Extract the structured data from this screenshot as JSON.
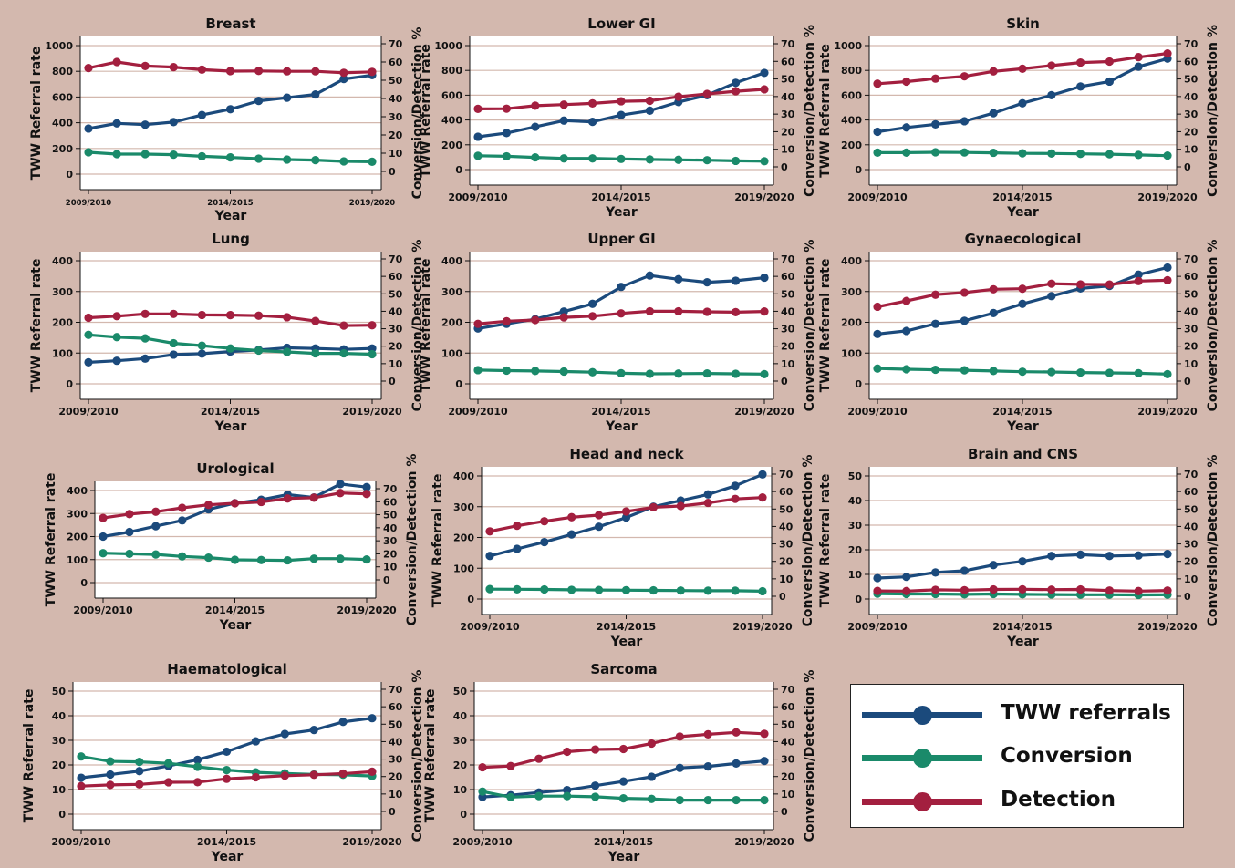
{
  "colors": {
    "referrals": "#1b4a7c",
    "conversion": "#1a8a6a",
    "detection": "#a31f3f",
    "plot_bg": "#ffffff",
    "grid": "#d3b8ae"
  },
  "legend": {
    "items": [
      {
        "key": "referrals",
        "label": "TWW referrals"
      },
      {
        "key": "conversion",
        "label": "Conversion"
      },
      {
        "key": "detection",
        "label": "Detection"
      }
    ]
  },
  "chart_data": [
    {
      "type": "line",
      "title": "Breast",
      "xlabel": "Year",
      "ylabel": "TWW Referral rate",
      "y2label": "Conversion/Detection %",
      "xticks": [
        "2009/2010",
        "2014/2015",
        "2019/2020"
      ],
      "ylim": [
        0,
        1000
      ],
      "yticks": [
        0,
        200,
        400,
        600,
        800,
        1000
      ],
      "y2lim": [
        0,
        70
      ],
      "y2ticks": [
        0,
        10,
        20,
        30,
        40,
        50,
        60,
        70
      ],
      "series": [
        {
          "name": "TWW referrals",
          "axis": "left",
          "values": [
            355,
            395,
            385,
            405,
            460,
            505,
            570,
            595,
            620,
            740,
            770
          ]
        },
        {
          "name": "Conversion",
          "axis": "right",
          "values": [
            10.5,
            9.5,
            9.5,
            9.2,
            8.3,
            7.7,
            7.0,
            6.5,
            6.2,
            5.5,
            5.3
          ]
        },
        {
          "name": "Detection",
          "axis": "right",
          "values": [
            56.7,
            60.0,
            57.8,
            57.2,
            55.8,
            55.0,
            55.1,
            54.9,
            54.9,
            54.1,
            54.6
          ]
        }
      ]
    },
    {
      "type": "line",
      "title": "Lower GI",
      "xlabel": "Year",
      "ylabel": "TWW Referral rate",
      "y2label": "Conversion/Detection %",
      "xticks": [
        "2009/2010",
        "2014/2015",
        "2019/2020"
      ],
      "ylim": [
        0,
        1000
      ],
      "yticks": [
        0,
        200,
        400,
        600,
        800,
        1000
      ],
      "y2lim": [
        0,
        70
      ],
      "y2ticks": [
        0,
        10,
        20,
        30,
        40,
        50,
        60,
        70
      ],
      "series": [
        {
          "name": "TWW referrals",
          "axis": "left",
          "values": [
            265,
            295,
            345,
            395,
            385,
            440,
            475,
            545,
            600,
            700,
            780
          ]
        },
        {
          "name": "Conversion",
          "axis": "right",
          "values": [
            6.3,
            6.0,
            5.4,
            4.8,
            4.8,
            4.5,
            4.2,
            4.0,
            3.8,
            3.4,
            3.2
          ]
        },
        {
          "name": "Detection",
          "axis": "right",
          "values": [
            33.0,
            33.1,
            34.8,
            35.4,
            36.1,
            37.3,
            37.6,
            39.9,
            41.5,
            43.0,
            44.1
          ]
        }
      ]
    },
    {
      "type": "line",
      "title": "Skin",
      "xlabel": "Year",
      "ylabel": "TWW Referral rate",
      "y2label": "Conversion/Detection %",
      "xticks": [
        "2009/2010",
        "2014/2015",
        "2019/2020"
      ],
      "ylim": [
        0,
        1000
      ],
      "yticks": [
        0,
        200,
        400,
        600,
        800,
        1000
      ],
      "y2lim": [
        0,
        70
      ],
      "y2ticks": [
        0,
        10,
        20,
        30,
        40,
        50,
        60,
        70
      ],
      "series": [
        {
          "name": "TWW referrals",
          "axis": "left",
          "values": [
            305,
            340,
            365,
            390,
            455,
            535,
            600,
            670,
            710,
            830,
            895
          ]
        },
        {
          "name": "Conversion",
          "axis": "right",
          "values": [
            8.1,
            8.1,
            8.3,
            8.2,
            8.0,
            7.7,
            7.6,
            7.4,
            7.2,
            6.8,
            6.4
          ]
        },
        {
          "name": "Detection",
          "axis": "right",
          "values": [
            47.3,
            48.5,
            50.2,
            51.5,
            54.3,
            55.8,
            57.6,
            59.3,
            59.9,
            62.4,
            64.5
          ]
        }
      ]
    },
    {
      "type": "line",
      "title": "Lung",
      "xlabel": "Year",
      "ylabel": "TWW Referral rate",
      "y2label": "Conversion/Detection %",
      "xticks": [
        "2009/2010",
        "2014/2015",
        "2019/2020"
      ],
      "ylim": [
        0,
        400
      ],
      "yticks": [
        0,
        100,
        200,
        300,
        400
      ],
      "y2lim": [
        0,
        70
      ],
      "y2ticks": [
        0,
        10,
        20,
        30,
        40,
        50,
        60,
        70
      ],
      "series": [
        {
          "name": "TWW referrals",
          "axis": "left",
          "values": [
            70,
            75,
            82,
            95,
            98,
            105,
            110,
            117,
            115,
            112,
            115
          ]
        },
        {
          "name": "Conversion",
          "axis": "right",
          "values": [
            26.5,
            25.2,
            24.5,
            21.7,
            20.3,
            18.7,
            17.5,
            16.7,
            15.9,
            15.9,
            15.4
          ]
        },
        {
          "name": "Detection",
          "axis": "right",
          "values": [
            36.3,
            37.2,
            38.5,
            38.5,
            37.9,
            37.8,
            37.5,
            36.6,
            34.4,
            31.8,
            32.0
          ]
        }
      ]
    },
    {
      "type": "line",
      "title": "Upper GI",
      "xlabel": "Year",
      "ylabel": "TWW Referral rate",
      "y2label": "Conversion/Detection %",
      "xticks": [
        "2009/2010",
        "2014/2015",
        "2019/2020"
      ],
      "ylim": [
        0,
        400
      ],
      "yticks": [
        0,
        100,
        200,
        300,
        400
      ],
      "y2lim": [
        0,
        70
      ],
      "y2ticks": [
        0,
        10,
        20,
        30,
        40,
        50,
        60,
        70
      ],
      "series": [
        {
          "name": "TWW referrals",
          "axis": "left",
          "values": [
            180,
            195,
            210,
            235,
            260,
            315,
            352,
            340,
            330,
            335,
            345
          ]
        },
        {
          "name": "Conversion",
          "axis": "right",
          "values": [
            6.3,
            6.0,
            5.8,
            5.5,
            5.1,
            4.5,
            4.2,
            4.3,
            4.4,
            4.2,
            4.0
          ]
        },
        {
          "name": "Detection",
          "axis": "right",
          "values": [
            32.8,
            34.3,
            35.0,
            36.5,
            37.2,
            38.8,
            40.0,
            40.0,
            39.7,
            39.5,
            39.9
          ]
        }
      ]
    },
    {
      "type": "line",
      "title": "Gynaecological",
      "xlabel": "Year",
      "ylabel": "TWW Referral rate",
      "y2label": "Conversion/Detection %",
      "xticks": [
        "2009/2010",
        "2014/2015",
        "2019/2020"
      ],
      "ylim": [
        0,
        400
      ],
      "yticks": [
        0,
        100,
        200,
        300,
        400
      ],
      "y2lim": [
        0,
        70
      ],
      "y2ticks": [
        0,
        10,
        20,
        30,
        40,
        50,
        60,
        70
      ],
      "series": [
        {
          "name": "TWW referrals",
          "axis": "left",
          "values": [
            162,
            172,
            195,
            205,
            230,
            260,
            285,
            310,
            318,
            355,
            378
          ]
        },
        {
          "name": "Conversion",
          "axis": "right",
          "values": [
            7.2,
            6.8,
            6.5,
            6.2,
            5.8,
            5.4,
            5.2,
            4.9,
            4.7,
            4.5,
            4.0
          ]
        },
        {
          "name": "Detection",
          "axis": "right",
          "values": [
            42.6,
            45.9,
            49.5,
            50.7,
            52.6,
            52.9,
            55.8,
            55.4,
            55.3,
            57.3,
            57.8
          ]
        }
      ]
    },
    {
      "type": "line",
      "title": "Urological",
      "xlabel": "Year",
      "ylabel": "TWW Referral rate",
      "y2label": "Conversion/Detection %",
      "xticks": [
        "2009/2010",
        "2014/2015",
        "2019/2020"
      ],
      "ylim": [
        0,
        400
      ],
      "yticks": [
        0,
        100,
        200,
        300,
        400
      ],
      "y2lim": [
        0,
        70
      ],
      "y2ticks": [
        0,
        10,
        20,
        30,
        40,
        50,
        60,
        70
      ],
      "series": [
        {
          "name": "TWW referrals",
          "axis": "left",
          "values": [
            200,
            220,
            245,
            270,
            318,
            345,
            360,
            382,
            370,
            428,
            415
          ]
        },
        {
          "name": "Conversion",
          "axis": "right",
          "values": [
            20.5,
            20.0,
            19.5,
            18.0,
            17.1,
            15.4,
            15.2,
            15.0,
            16.3,
            16.3,
            15.7
          ]
        },
        {
          "name": "Detection",
          "axis": "right",
          "values": [
            47.5,
            50.5,
            52.3,
            55.3,
            57.6,
            58.8,
            59.8,
            62.5,
            63.1,
            66.7,
            66.0
          ]
        }
      ]
    },
    {
      "type": "line",
      "title": "Head and neck",
      "xlabel": "Year",
      "ylabel": "TWW Referral rate",
      "y2label": "Conversion/Detection %",
      "xticks": [
        "2009/2010",
        "2014/2015",
        "2019/2020"
      ],
      "ylim": [
        0,
        400
      ],
      "yticks": [
        0,
        100,
        200,
        300,
        400
      ],
      "y2lim": [
        0,
        70
      ],
      "y2ticks": [
        0,
        10,
        20,
        30,
        40,
        50,
        60,
        70
      ],
      "series": [
        {
          "name": "TWW referrals",
          "axis": "left",
          "values": [
            140,
            163,
            185,
            210,
            235,
            265,
            300,
            320,
            340,
            368,
            405
          ]
        },
        {
          "name": "Conversion",
          "axis": "right",
          "values": [
            4.1,
            4.0,
            3.9,
            3.7,
            3.6,
            3.5,
            3.4,
            3.3,
            3.2,
            3.2,
            2.9
          ]
        },
        {
          "name": "Detection",
          "axis": "right",
          "values": [
            37.2,
            40.4,
            43.0,
            45.3,
            46.5,
            48.6,
            51.0,
            51.7,
            53.5,
            55.8,
            56.6
          ]
        }
      ]
    },
    {
      "type": "line",
      "title": "Brain and CNS",
      "xlabel": "Year",
      "ylabel": "TWW Referral rate",
      "y2label": "Conversion/Detection %",
      "xticks": [
        "2009/2010",
        "2014/2015",
        "2019/2020"
      ],
      "ylim": [
        0,
        50
      ],
      "yticks": [
        0,
        10,
        20,
        30,
        40,
        50
      ],
      "y2lim": [
        0,
        70
      ],
      "y2ticks": [
        0,
        10,
        20,
        30,
        40,
        50,
        60,
        70
      ],
      "series": [
        {
          "name": "TWW referrals",
          "axis": "left",
          "values": [
            8.5,
            9.0,
            10.8,
            11.5,
            13.8,
            15.3,
            17.5,
            18.0,
            17.5,
            17.7,
            18.3
          ]
        },
        {
          "name": "Conversion",
          "axis": "right",
          "values": [
            1.5,
            1.3,
            1.3,
            1.1,
            1.3,
            1.1,
            1.0,
            0.9,
            0.9,
            0.8,
            0.9
          ]
        },
        {
          "name": "Detection",
          "axis": "right",
          "values": [
            3.1,
            3.0,
            3.7,
            3.5,
            3.9,
            4.0,
            3.8,
            3.9,
            3.3,
            3.0,
            3.3
          ]
        }
      ]
    },
    {
      "type": "line",
      "title": "Haematological",
      "xlabel": "Year",
      "ylabel": "TWW Referral rate",
      "y2label": "Conversion/Detection %",
      "xticks": [
        "2009/2010",
        "2014/2015",
        "2019/2020"
      ],
      "ylim": [
        0,
        50
      ],
      "yticks": [
        0,
        10,
        20,
        30,
        40,
        50
      ],
      "y2lim": [
        0,
        70
      ],
      "y2ticks": [
        0,
        10,
        20,
        30,
        40,
        50,
        60,
        70
      ],
      "series": [
        {
          "name": "TWW referrals",
          "axis": "left",
          "values": [
            14.8,
            16.1,
            17.5,
            19.6,
            22.1,
            25.4,
            29.6,
            32.6,
            34.2,
            37.5,
            39.0
          ]
        },
        {
          "name": "Conversion",
          "axis": "right",
          "values": [
            31.5,
            28.7,
            28.4,
            27.6,
            25.6,
            23.7,
            22.4,
            21.8,
            21.2,
            21.0,
            20.3
          ]
        },
        {
          "name": "Detection",
          "axis": "right",
          "values": [
            14.5,
            15.2,
            15.5,
            16.7,
            16.8,
            18.7,
            19.6,
            20.5,
            21.0,
            21.7,
            22.8
          ]
        }
      ]
    },
    {
      "type": "line",
      "title": "Sarcoma",
      "xlabel": "Year",
      "ylabel": "TWW Referral rate",
      "y2label": "Conversion/Detection %",
      "xticks": [
        "2009/2010",
        "2014/2015",
        "2019/2020"
      ],
      "ylim": [
        0,
        50
      ],
      "yticks": [
        0,
        10,
        20,
        30,
        40,
        50
      ],
      "y2lim": [
        0,
        70
      ],
      "y2ticks": [
        0,
        10,
        20,
        30,
        40,
        50,
        60,
        70
      ],
      "series": [
        {
          "name": "TWW referrals",
          "axis": "left",
          "values": [
            7.0,
            7.7,
            8.8,
            9.8,
            11.6,
            13.3,
            15.2,
            18.8,
            19.4,
            20.6,
            21.6
          ]
        },
        {
          "name": "Conversion",
          "axis": "right",
          "values": [
            11.4,
            8.2,
            8.8,
            8.8,
            8.4,
            7.5,
            7.2,
            6.5,
            6.5,
            6.5,
            6.5
          ]
        },
        {
          "name": "Detection",
          "axis": "right",
          "values": [
            25.3,
            26.0,
            30.2,
            34.2,
            35.5,
            35.8,
            38.9,
            42.9,
            44.2,
            45.3,
            44.5
          ]
        }
      ]
    }
  ]
}
